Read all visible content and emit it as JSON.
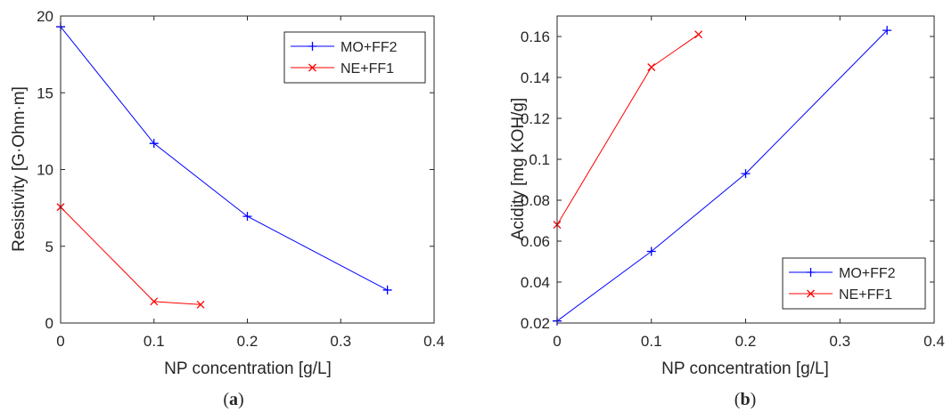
{
  "figure": {
    "panels": [
      {
        "sublabel_open": "(",
        "sublabel_letter": "a",
        "sublabel_close": ")"
      },
      {
        "sublabel_open": "(",
        "sublabel_letter": "b",
        "sublabel_close": ")"
      }
    ]
  },
  "chart_data": [
    {
      "type": "line",
      "xlabel": "NP concentration [g/L]",
      "ylabel": "Resistivity [G·Ohm·m]",
      "xlim": [
        0,
        0.4
      ],
      "ylim": [
        0,
        20
      ],
      "xticks": [
        0,
        0.1,
        0.2,
        0.3,
        0.4
      ],
      "xtick_labels": [
        "0",
        "0.1",
        "0.2",
        "0.3",
        "0.4"
      ],
      "yticks": [
        0,
        5,
        10,
        15,
        20
      ],
      "ytick_labels": [
        "0",
        "5",
        "10",
        "15",
        "20"
      ],
      "grid": false,
      "legend_position": "top-right",
      "series": [
        {
          "name": "MO+FF2",
          "color": "#0000ff",
          "marker": "plus",
          "x": [
            0,
            0.1,
            0.2,
            0.35
          ],
          "y": [
            19.3,
            11.7,
            6.95,
            2.15
          ]
        },
        {
          "name": "NE+FF1",
          "color": "#ff0000",
          "marker": "x",
          "x": [
            0,
            0.1,
            0.15
          ],
          "y": [
            7.55,
            1.4,
            1.2
          ]
        }
      ]
    },
    {
      "type": "line",
      "xlabel": "NP concentration [g/L]",
      "ylabel": "Acidity [mg KOH/g]",
      "xlim": [
        0,
        0.4
      ],
      "ylim": [
        0.02,
        0.17
      ],
      "xticks": [
        0,
        0.1,
        0.2,
        0.3,
        0.4
      ],
      "xtick_labels": [
        "0",
        "0.1",
        "0.2",
        "0.3",
        "0.4"
      ],
      "yticks": [
        0.02,
        0.04,
        0.06,
        0.08,
        0.1,
        0.12,
        0.14,
        0.16
      ],
      "ytick_labels": [
        "0.02",
        "0.04",
        "0.06",
        "0.08",
        "0.1",
        "0.12",
        "0.14",
        "0.16"
      ],
      "grid": false,
      "legend_position": "bottom-right",
      "series": [
        {
          "name": "MO+FF2",
          "color": "#0000ff",
          "marker": "plus",
          "x": [
            0,
            0.1,
            0.2,
            0.35
          ],
          "y": [
            0.021,
            0.055,
            0.093,
            0.163
          ]
        },
        {
          "name": "NE+FF1",
          "color": "#ff0000",
          "marker": "x",
          "x": [
            0,
            0.1,
            0.15
          ],
          "y": [
            0.068,
            0.145,
            0.161
          ]
        }
      ]
    }
  ]
}
